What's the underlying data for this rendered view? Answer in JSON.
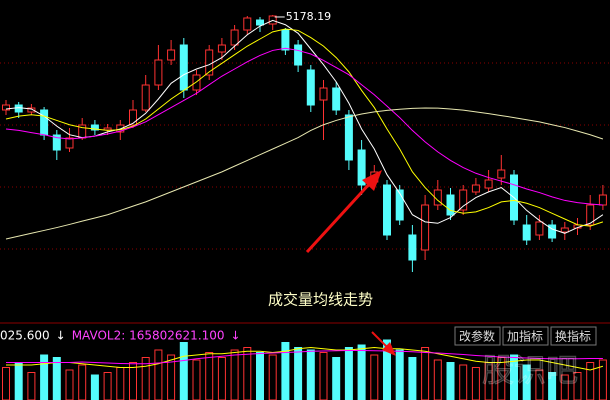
{
  "chart_data": [
    {
      "type": "candlestick",
      "open": [
        4513,
        4548,
        4499,
        4513,
        4338,
        4247,
        4317,
        4408,
        4373,
        4359,
        4408,
        4513,
        4688,
        4863,
        4968,
        4653,
        4758,
        4919,
        4968,
        5073,
        5143,
        5115,
        5073,
        4968,
        4793,
        4583,
        4667,
        4478,
        4233,
        4009,
        3988,
        3953,
        3638,
        3533,
        3848,
        3918,
        3813,
        3939,
        3967,
        4037,
        4058,
        3708,
        3638,
        3708,
        3659,
        3687,
        3708,
        3848
      ],
      "high": [
        4583,
        4569,
        4555,
        4534,
        4373,
        4387,
        4457,
        4443,
        4415,
        4443,
        4583,
        4758,
        4968,
        5003,
        5017,
        4793,
        4968,
        5017,
        5108,
        5171,
        5164,
        5178.19,
        5087,
        5003,
        4828,
        4723,
        4709,
        4513,
        4303,
        4128,
        4023,
        3988,
        3708,
        3918,
        4023,
        3967,
        3988,
        4037,
        4093,
        4198,
        4093,
        3778,
        3778,
        3743,
        3729,
        3757,
        3918,
        3988
      ],
      "low": [
        4478,
        4457,
        4478,
        4303,
        4163,
        4219,
        4303,
        4338,
        4338,
        4303,
        4387,
        4499,
        4653,
        4828,
        4597,
        4618,
        4723,
        4863,
        4933,
        5038,
        5059,
        5073,
        4898,
        4779,
        4499,
        4303,
        4478,
        4093,
        3918,
        3967,
        3603,
        3708,
        3379,
        3463,
        3813,
        3743,
        3778,
        3918,
        3939,
        3988,
        3708,
        3568,
        3603,
        3589,
        3603,
        3638,
        3673,
        3813
      ],
      "close": [
        4548,
        4499,
        4527,
        4338,
        4233,
        4317,
        4408,
        4373,
        4387,
        4408,
        4513,
        4688,
        4863,
        4933,
        4653,
        4758,
        4933,
        4968,
        5073,
        5157,
        5108,
        5171,
        4933,
        4828,
        4548,
        4667,
        4513,
        4163,
        3988,
        4079,
        3638,
        3743,
        3463,
        3848,
        3953,
        3778,
        3953,
        3988,
        4023,
        4093,
        3743,
        3603,
        3729,
        3617,
        3687,
        3708,
        3848,
        3918
      ],
      "up_color": "#ff3232",
      "down_color": "#54fcfc",
      "ylim": [
        3043,
        5283
      ],
      "lines": [
        {
          "color": "#ffffff",
          "values": [
            4520,
            4530,
            4520,
            4470,
            4400,
            4340,
            4320,
            4330,
            4360,
            4380,
            4420,
            4490,
            4590,
            4700,
            4760,
            4800,
            4830,
            4880,
            4960,
            5040,
            5100,
            5140,
            5110,
            5050,
            4940,
            4830,
            4710,
            4560,
            4380,
            4240,
            4060,
            3930,
            3780,
            3730,
            3720,
            3760,
            3840,
            3900,
            3940,
            3970,
            3900,
            3810,
            3740,
            3680,
            3650,
            3690,
            3720,
            3780
          ]
        },
        {
          "color": "#ffff00",
          "values": [
            4450,
            4470,
            4480,
            4470,
            4440,
            4410,
            4390,
            4380,
            4370,
            4375,
            4400,
            4450,
            4520,
            4590,
            4650,
            4710,
            4780,
            4840,
            4900,
            4960,
            5010,
            5060,
            5080,
            5070,
            5020,
            4960,
            4880,
            4780,
            4650,
            4530,
            4380,
            4240,
            4080,
            3970,
            3880,
            3810,
            3790,
            3800,
            3830,
            3870,
            3880,
            3860,
            3830,
            3790,
            3750,
            3710,
            3700,
            3730
          ]
        },
        {
          "color": "#ff00ff",
          "values": [
            4380,
            4370,
            4355,
            4340,
            4320,
            4310,
            4318,
            4330,
            4345,
            4365,
            4395,
            4430,
            4480,
            4530,
            4580,
            4630,
            4690,
            4750,
            4800,
            4850,
            4895,
            4930,
            4945,
            4930,
            4905,
            4860,
            4810,
            4760,
            4690,
            4620,
            4540,
            4460,
            4370,
            4290,
            4220,
            4160,
            4110,
            4070,
            4040,
            4015,
            3990,
            3960,
            3935,
            3905,
            3880,
            3865,
            3855,
            3848
          ]
        },
        {
          "color": "#e8e8b0",
          "values": [
            3610,
            3630,
            3650,
            3670,
            3690,
            3712,
            3735,
            3757,
            3780,
            3810,
            3840,
            3870,
            3905,
            3940,
            3975,
            4010,
            4045,
            4080,
            4120,
            4160,
            4200,
            4240,
            4280,
            4320,
            4370,
            4410,
            4440,
            4465,
            4485,
            4500,
            4510,
            4518,
            4524,
            4527,
            4526,
            4520,
            4512,
            4500,
            4488,
            4474,
            4460,
            4445,
            4430,
            4410,
            4390,
            4365,
            4340,
            4310
          ]
        }
      ]
    },
    {
      "type": "bar",
      "values": [
        130000000,
        150000000,
        110000000,
        180000000,
        170000000,
        120000000,
        140000000,
        100000000,
        110000000,
        130000000,
        150000000,
        170000000,
        200000000,
        180000000,
        230000000,
        160000000,
        190000000,
        170000000,
        200000000,
        210000000,
        190000000,
        180000000,
        230000000,
        210000000,
        200000000,
        190000000,
        170000000,
        210000000,
        220000000,
        180000000,
        240000000,
        200000000,
        170000000,
        210000000,
        160000000,
        150000000,
        140000000,
        130000000,
        150000000,
        170000000,
        180000000,
        140000000,
        120000000,
        110000000,
        100000000,
        110000000,
        150000000,
        160000000
      ],
      "ylim": [
        0,
        248000000
      ],
      "lines": [
        {
          "color": "#ffff00",
          "values": [
            140000000,
            140000000,
            140000000,
            145000000,
            150000000,
            150000000,
            145000000,
            140000000,
            135000000,
            130000000,
            130000000,
            135000000,
            145000000,
            160000000,
            175000000,
            180000000,
            185000000,
            185000000,
            190000000,
            195000000,
            195000000,
            190000000,
            195000000,
            205000000,
            210000000,
            205000000,
            200000000,
            200000000,
            205000000,
            210000000,
            205000000,
            205000000,
            200000000,
            195000000,
            185000000,
            175000000,
            165000000,
            155000000,
            150000000,
            150000000,
            155000000,
            160000000,
            160000000,
            150000000,
            140000000,
            130000000,
            120000000,
            135000000
          ]
        },
        {
          "color": "#ff00ff",
          "values": [
            150000000,
            150000000,
            150000000,
            150000000,
            150000000,
            150000000,
            152000000,
            150000000,
            148000000,
            146000000,
            145000000,
            145000000,
            148000000,
            152000000,
            158000000,
            165000000,
            170000000,
            175000000,
            180000000,
            183000000,
            186000000,
            188000000,
            190000000,
            192000000,
            195000000,
            196000000,
            197000000,
            198000000,
            198000000,
            197000000,
            196000000,
            195000000,
            193000000,
            190000000,
            188000000,
            185000000,
            182000000,
            178000000,
            175000000,
            172000000,
            170000000,
            168000000,
            166000000,
            165000000,
            165000000,
            165000000,
            166000000,
            165802621.1
          ]
        }
      ],
      "indicator_labels": [
        "025.600",
        "↓",
        "MAVOL2: 165802621.100",
        "↓"
      ]
    }
  ],
  "annotation": "成交量均线走势",
  "buttons": [
    "改参数",
    "加指标",
    "换指标"
  ],
  "watermark": "股识吧"
}
